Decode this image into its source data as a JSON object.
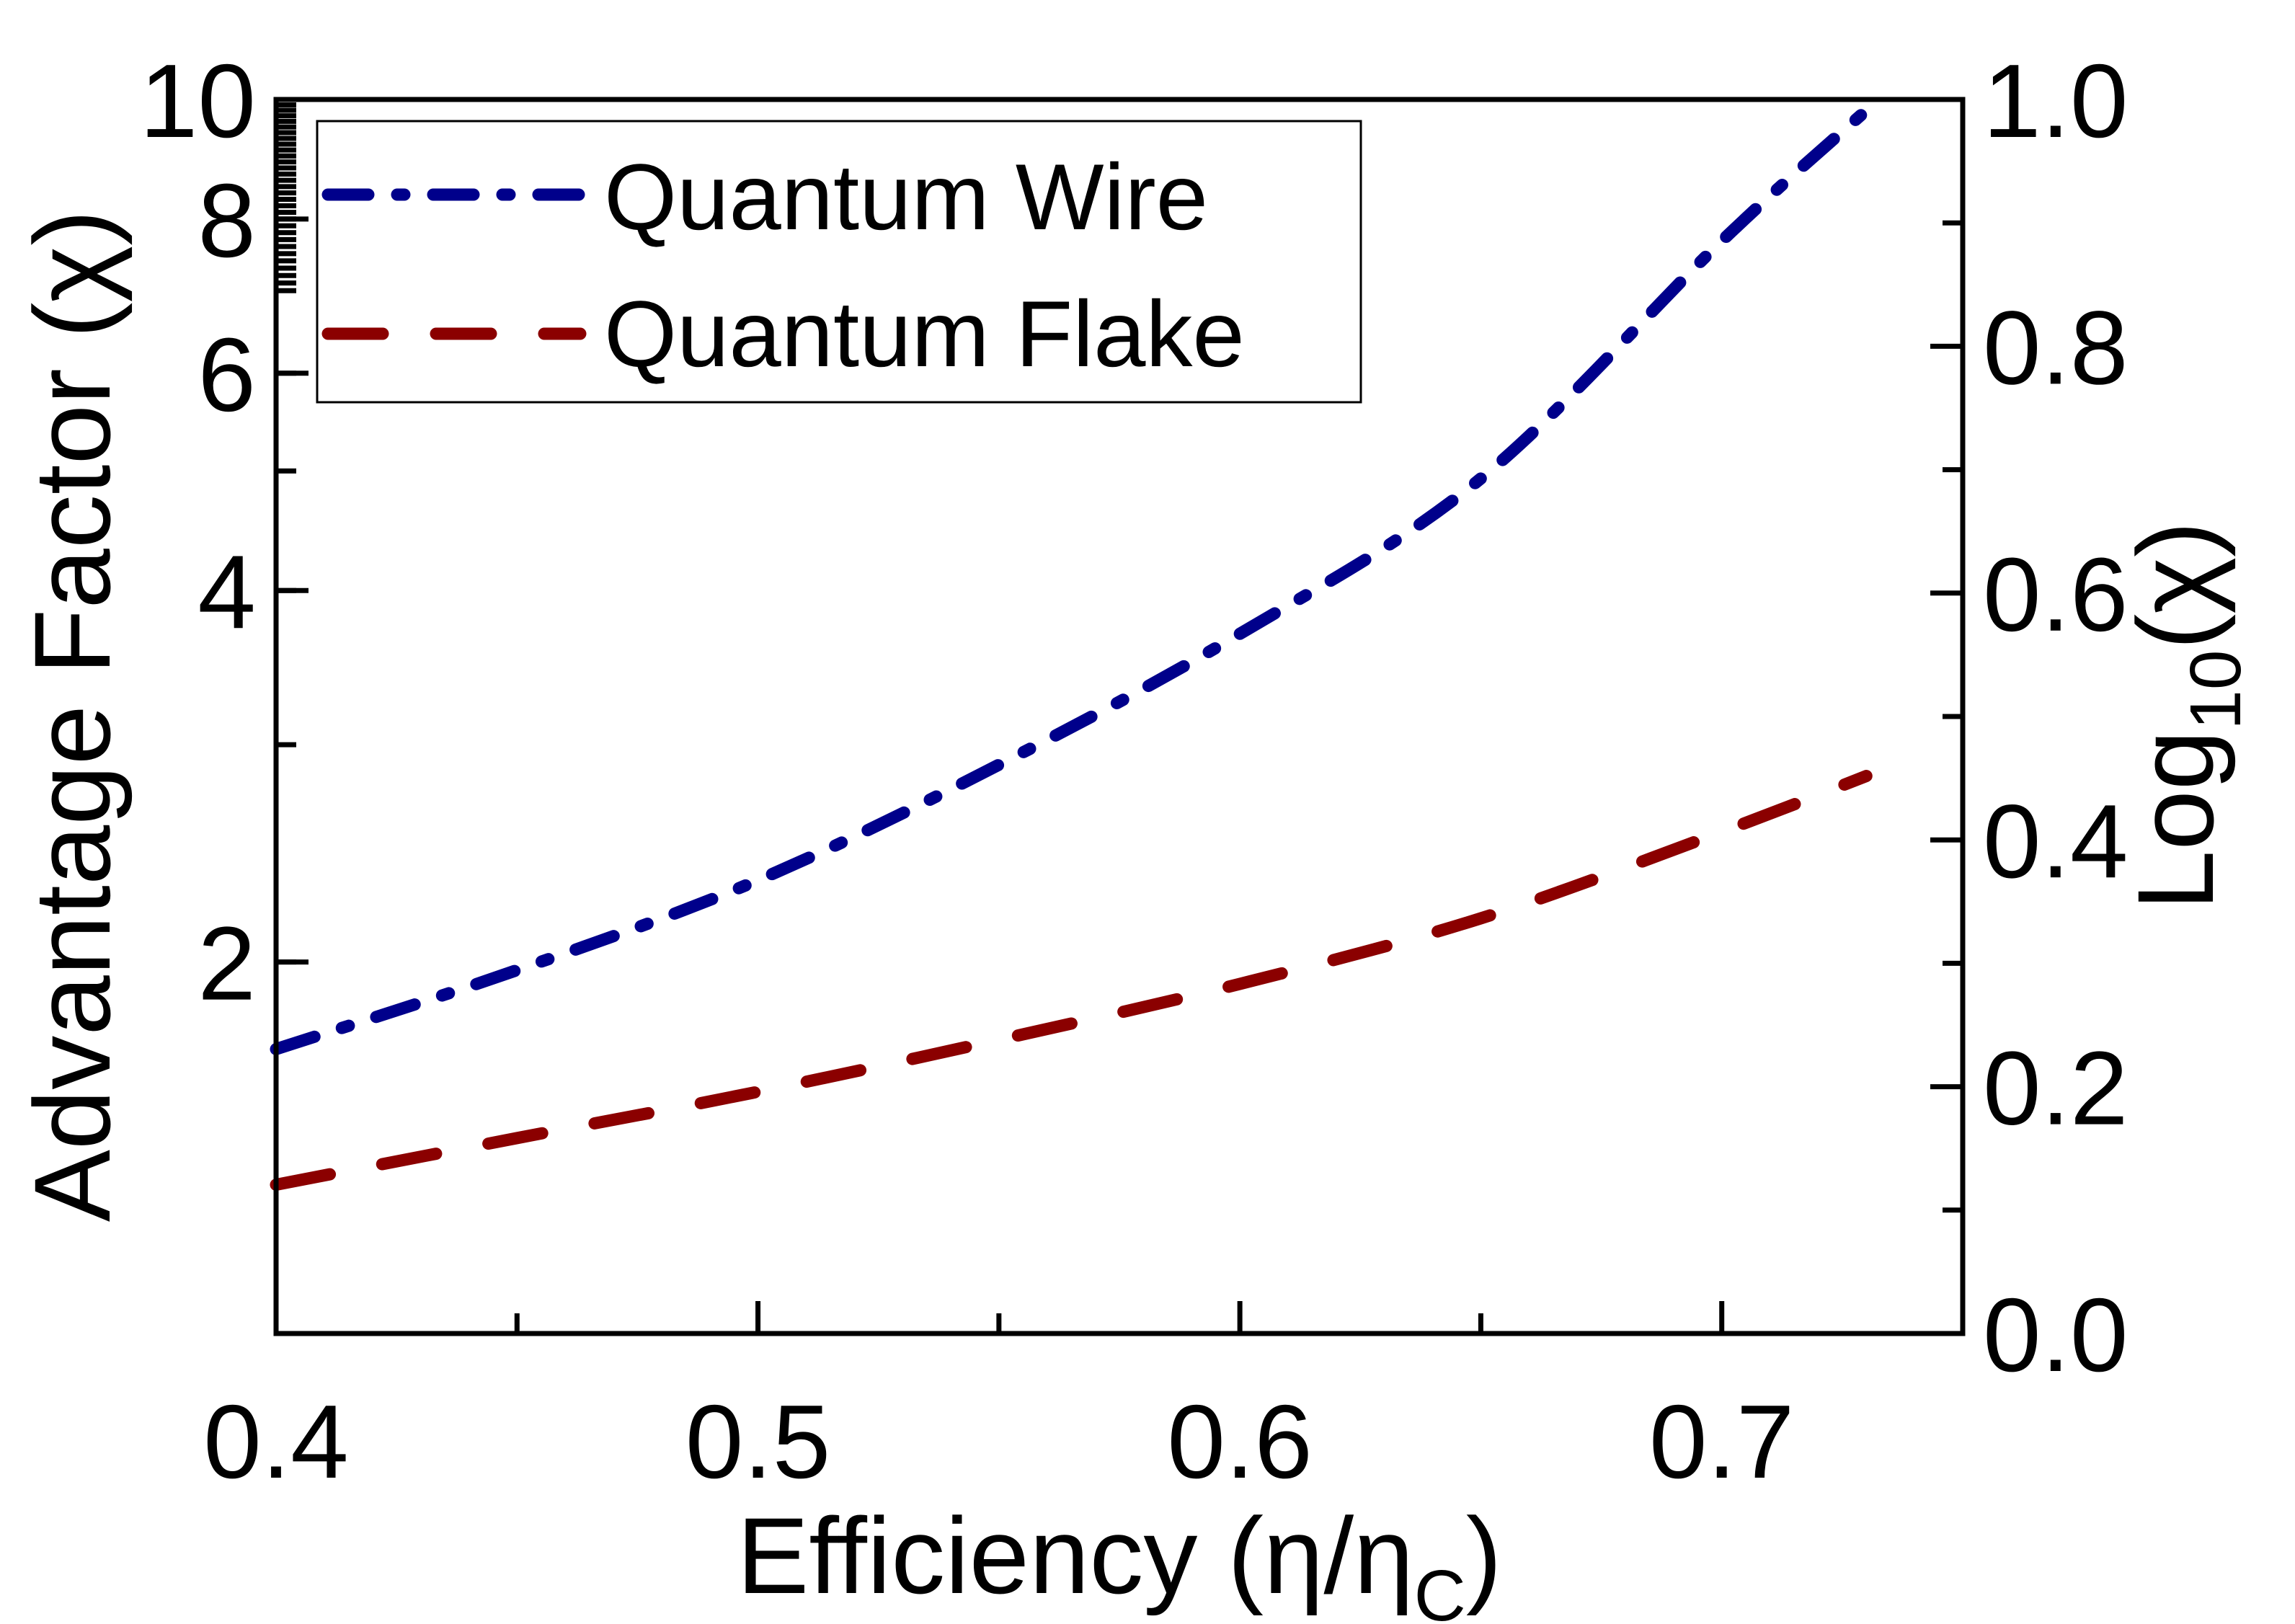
{
  "chart_data": {
    "type": "line",
    "x": [
      0.4,
      0.45,
      0.5,
      0.55,
      0.6,
      0.65,
      0.7,
      0.73
    ],
    "series": [
      {
        "name": "Quantum Wire",
        "color": "#00008B",
        "style": "dash-dot",
        "values": [
          1.7,
          1.97,
          2.33,
          2.89,
          3.69,
          4.93,
          7.68,
          9.8
        ]
      },
      {
        "name": "Quantum Flake",
        "color": "#8B0000",
        "style": "dashed",
        "values": [
          1.32,
          1.44,
          1.57,
          1.73,
          1.92,
          2.17,
          2.55,
          2.83
        ]
      }
    ],
    "xlabel": "Efficiency (η/η",
    "xlabel_sub": "C",
    "xlabel_tail": ")",
    "ylabel_left": "Advantage Factor (χ)",
    "ylabel_right": "Log",
    "ylabel_right_sub": "10",
    "ylabel_right_tail": "(χ)",
    "xlim": [
      0.4,
      0.75
    ],
    "ylim_left": [
      1,
      10
    ],
    "ylim_right": [
      0.0,
      1.0
    ],
    "yscale_left": "log",
    "x_ticks": [
      "0.4",
      "0.5",
      "0.6",
      "0.7"
    ],
    "left_ticks": [
      "2",
      "4",
      "6",
      "8",
      "10"
    ],
    "right_ticks": [
      "0.0",
      "0.2",
      "0.4",
      "0.6",
      "0.8",
      "1.0"
    ],
    "legend_position": "top-left",
    "grid": false
  }
}
